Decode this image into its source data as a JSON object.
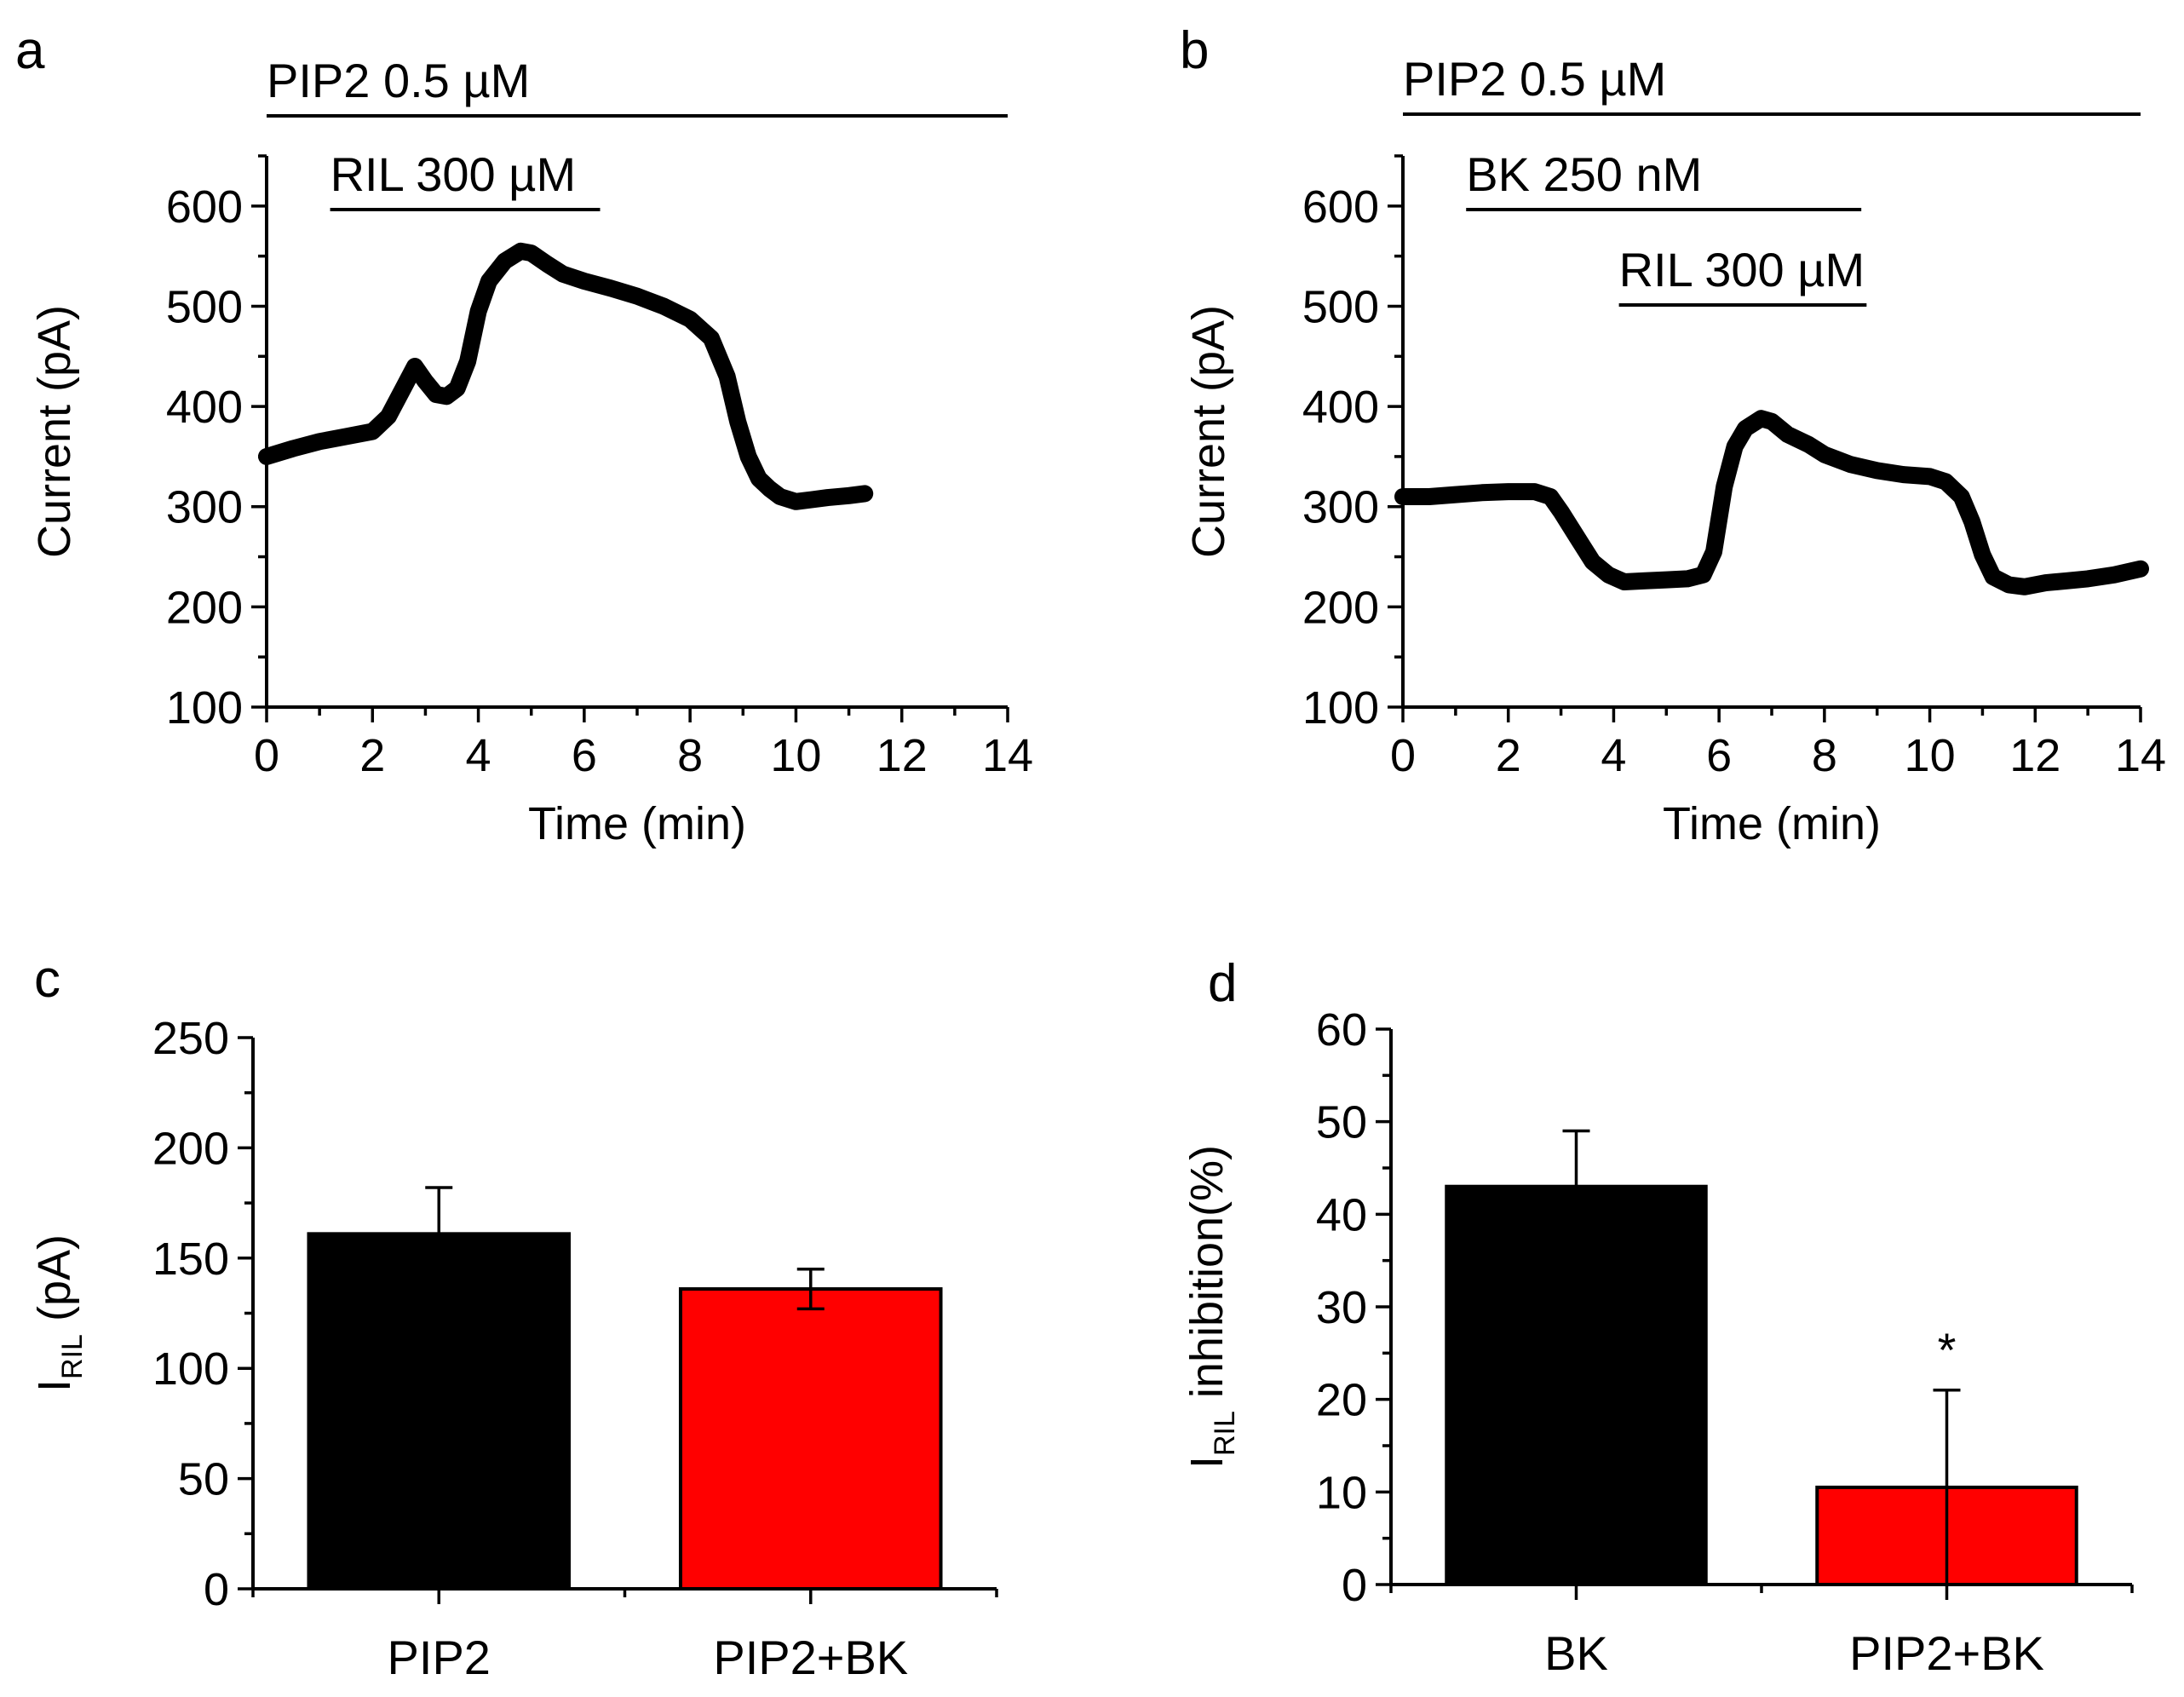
{
  "panels": {
    "a": {
      "label": "a",
      "chart_data": {
        "type": "line",
        "title": "",
        "xlabel": "Time (min)",
        "ylabel": "Current (pA)",
        "xlim": [
          0,
          14
        ],
        "ylim": [
          100,
          650
        ],
        "xticks": [
          "0",
          "2",
          "4",
          "6",
          "8",
          "10",
          "12",
          "14"
        ],
        "yticks": [
          "100",
          "200",
          "300",
          "400",
          "500",
          "600"
        ],
        "annotations": [
          {
            "text": "PIP2 0.5 µM",
            "start": 0,
            "end": 14
          },
          {
            "text": "RIL 300 µM",
            "start": 1.2,
            "end": 6.3
          }
        ],
        "series": [
          {
            "name": "current",
            "x": [
              0,
              0.5,
              1.0,
              1.5,
              2.0,
              2.3,
              2.6,
              2.8,
              3.0,
              3.2,
              3.4,
              3.6,
              3.8,
              4.0,
              4.2,
              4.5,
              4.8,
              5.0,
              5.3,
              5.6,
              6.0,
              6.5,
              7.0,
              7.5,
              8.0,
              8.4,
              8.7,
              8.9,
              9.1,
              9.3,
              9.5,
              9.7,
              10.0,
              10.3,
              10.6,
              11.0,
              11.3
            ],
            "y": [
              350,
              358,
              365,
              370,
              375,
              390,
              420,
              440,
              425,
              412,
              410,
              418,
              445,
              495,
              525,
              545,
              555,
              553,
              542,
              532,
              525,
              518,
              510,
              500,
              487,
              468,
              430,
              385,
              350,
              328,
              318,
              310,
              305,
              307,
              309,
              311,
              313
            ]
          }
        ]
      }
    },
    "b": {
      "label": "b",
      "chart_data": {
        "type": "line",
        "title": "",
        "xlabel": "Time (min)",
        "ylabel": "Current (pA)",
        "xlim": [
          0,
          14
        ],
        "ylim": [
          100,
          650
        ],
        "xticks": [
          "0",
          "2",
          "4",
          "6",
          "8",
          "10",
          "12",
          "14"
        ],
        "yticks": [
          "100",
          "200",
          "300",
          "400",
          "500",
          "600"
        ],
        "annotations": [
          {
            "text": "PIP2 0.5 µM",
            "start": 0,
            "end": 14
          },
          {
            "text": "BK 250 nM",
            "start": 1.2,
            "end": 8.7
          },
          {
            "text": "RIL 300 µM",
            "start": 4.1,
            "end": 8.8
          }
        ],
        "series": [
          {
            "name": "current",
            "x": [
              0,
              0.5,
              1.0,
              1.5,
              2.0,
              2.5,
              2.8,
              3.0,
              3.3,
              3.6,
              3.9,
              4.2,
              4.6,
              5.0,
              5.4,
              5.7,
              5.9,
              6.1,
              6.3,
              6.5,
              6.8,
              7.0,
              7.3,
              7.7,
              8.0,
              8.5,
              9.0,
              9.5,
              10.0,
              10.3,
              10.6,
              10.8,
              11.0,
              11.2,
              11.5,
              11.8,
              12.2,
              12.6,
              13.0,
              13.5,
              14.0
            ],
            "y": [
              310,
              310,
              312,
              314,
              315,
              315,
              310,
              295,
              270,
              245,
              232,
              225,
              226,
              227,
              228,
              232,
              255,
              320,
              360,
              378,
              388,
              385,
              372,
              362,
              352,
              342,
              336,
              332,
              330,
              325,
              310,
              285,
              252,
              230,
              222,
              220,
              224,
              226,
              228,
              232,
              238
            ]
          }
        ]
      }
    },
    "c": {
      "label": "c",
      "chart_data": {
        "type": "bar",
        "title": "",
        "xlabel": "",
        "ylabel": {
          "main": "I",
          "sub": "RIL",
          "rest": " (pA)"
        },
        "ylim": [
          0,
          250
        ],
        "yticks": [
          "0",
          "50",
          "100",
          "150",
          "200",
          "250"
        ],
        "categories": [
          "PIP2",
          "PIP2+BK"
        ],
        "values": [
          161,
          136
        ],
        "errors": [
          21,
          9
        ],
        "colors": [
          "#000000",
          "#ff0000"
        ],
        "annotations": []
      }
    },
    "d": {
      "label": "d",
      "chart_data": {
        "type": "bar",
        "title": "",
        "xlabel": "",
        "ylabel": {
          "main": "I",
          "sub": "RIL",
          "rest": " inhibition(%)"
        },
        "ylim": [
          0,
          60
        ],
        "yticks": [
          "0",
          "10",
          "20",
          "30",
          "40",
          "50",
          "60"
        ],
        "categories": [
          "BK",
          "PIP2+BK"
        ],
        "values": [
          43,
          10.5
        ],
        "errors": [
          6,
          10.5
        ],
        "colors": [
          "#000000",
          "#ff0000"
        ],
        "annotations": [
          {
            "text": "*",
            "category": "PIP2+BK"
          }
        ]
      }
    }
  }
}
